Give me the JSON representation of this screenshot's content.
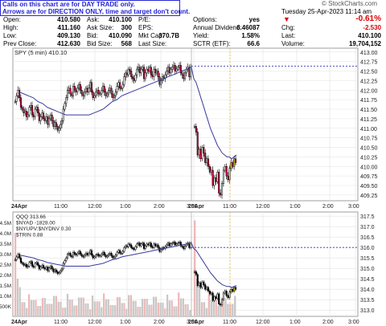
{
  "note": {
    "line1": "Calls on this chart are for DAY TRADE only.",
    "line2": "Arrows are for DIRECTION ONLY, time and target don't count."
  },
  "brand": "© StockCharts.com",
  "date": "Tuesday  25-Apr-2023  11:14 am",
  "quote": {
    "col1": [
      {
        "label": "Open:",
        "value": "410.580"
      },
      {
        "label": "High:",
        "value": "411.160"
      },
      {
        "label": "Low:",
        "value": "409.130"
      },
      {
        "label": "Prev Close:",
        "value": "412.630"
      }
    ],
    "col2": [
      {
        "label": "Ask:",
        "value": "410.100"
      },
      {
        "label": "Ask Size:",
        "value": "300"
      },
      {
        "label": "Bid:",
        "value": "410.090"
      },
      {
        "label": "Bid Size:",
        "value": "568"
      }
    ],
    "col3": [
      {
        "label": "P/E:",
        "value": ""
      },
      {
        "label": "EPS:",
        "value": ""
      },
      {
        "label": "Mkt Cap:",
        "value": "370.7B"
      },
      {
        "label": "Last Size:",
        "value": ""
      }
    ],
    "col4": [
      {
        "label": "Options:",
        "value": "yes"
      },
      {
        "label": "Annual Dividend:",
        "value": "6.46087"
      },
      {
        "label": "Yield:",
        "value": "1.58%"
      },
      {
        "label": "SCTR (ETF):",
        "value": "66.6"
      }
    ],
    "change_pct": "-0.61%",
    "col5": [
      {
        "label": "Chg:",
        "value": "-2.530"
      },
      {
        "label": "Last:",
        "value": "410.100"
      },
      {
        "label": "Volume:",
        "value": "19,704,152"
      }
    ]
  },
  "colors": {
    "up": "#ffffff",
    "down": "#e0003c",
    "ma": "#3a3aa0",
    "today": "#f5e200",
    "marker": "#f0a500",
    "dashed": "#3030b0",
    "volume": "#c8c8c8"
  },
  "chart_data": [
    {
      "type": "candlestick",
      "legend": "SPY (5 min) 410.10",
      "ylim": [
        409.1,
        413.1
      ],
      "yticks": [
        "413.00",
        "412.75",
        "412.50",
        "412.25",
        "412.00",
        "411.75",
        "411.50",
        "411.25",
        "411.00",
        "410.75",
        "410.50",
        "410.25",
        "410.00",
        "409.75",
        "409.50",
        "409.25"
      ],
      "prev_close": 412.63,
      "x_labels": [
        "24Apr",
        "11:00",
        "12:00",
        "1:00",
        "2:00",
        "3:00",
        "25Apr",
        "11:00",
        "12:00",
        "1:00",
        "2:00",
        "3:00"
      ],
      "session1_close": [
        411.7,
        411.85,
        412.0,
        411.8,
        411.55,
        411.5,
        411.4,
        411.45,
        411.3,
        411.35,
        411.55,
        411.6,
        411.35,
        411.3,
        411.5,
        411.55,
        411.4,
        411.2,
        411.3,
        411.4,
        411.25,
        411.2,
        411.3,
        411.1,
        411.25,
        411.35,
        411.2,
        411.05,
        411.15,
        411.05,
        410.95,
        411.0,
        411.1,
        411.2,
        411.5,
        411.65,
        411.8,
        412.0,
        412.05,
        411.9,
        411.85,
        412.1,
        412.0,
        411.95,
        412.05,
        412.15,
        412.0,
        411.9,
        411.85,
        411.95,
        412.05,
        411.95,
        412.05,
        412.2,
        411.95,
        411.8,
        411.85,
        411.95,
        412.0,
        411.9,
        411.9,
        412.0,
        412.1,
        411.95,
        411.85,
        411.9,
        412.0,
        412.05,
        411.9,
        411.8,
        411.85,
        411.95,
        412.1,
        412.2,
        412.05,
        412.05,
        412.15,
        412.35,
        412.45,
        412.4,
        412.55,
        412.5,
        412.35,
        412.3,
        412.25,
        412.4,
        412.55,
        412.6,
        412.45,
        412.55,
        412.6,
        412.3,
        412.45,
        412.55,
        412.5,
        412.6,
        412.4,
        412.35,
        412.55,
        412.45,
        412.5,
        412.35,
        412.15,
        412.25,
        412.35,
        412.3,
        412.4,
        412.5,
        412.6,
        412.45,
        412.55,
        412.6,
        412.65,
        412.5,
        412.55,
        412.6,
        412.65,
        412.45,
        412.4,
        412.3,
        412.45,
        412.55,
        412.6,
        412.35,
        412.6
      ],
      "session2_close": [
        411.05,
        410.9,
        410.3,
        410.45,
        410.2,
        410.5,
        410.35,
        410.1,
        410.2,
        410.0,
        409.85,
        409.9,
        409.5,
        409.7,
        409.6,
        409.85,
        409.3,
        409.25,
        409.55,
        409.9,
        410.0,
        409.75,
        409.65,
        409.95,
        410.1,
        410.0,
        410.2,
        410.1
      ],
      "ma": [
        411.95,
        411.9,
        411.85,
        411.8,
        411.7,
        411.65,
        411.55,
        411.5,
        411.45,
        411.4,
        411.35,
        411.35,
        411.35,
        411.35,
        411.35,
        411.35,
        411.4,
        411.45,
        411.5,
        411.6,
        411.7,
        411.75,
        411.85,
        411.9,
        411.95,
        412.0,
        412.05,
        412.1,
        412.15,
        412.2,
        412.25,
        412.3,
        412.35,
        412.4,
        412.45,
        412.5,
        412.55,
        412.6,
        412.3,
        412.2,
        412.0,
        411.8,
        411.6,
        411.4,
        411.2,
        411.0,
        410.85,
        410.7,
        410.55,
        410.45,
        410.35,
        410.3,
        410.25,
        410.25,
        410.2,
        410.25,
        410.3
      ]
    },
    {
      "type": "bar",
      "legend": [
        "QQQ 313.66",
        "$NYAD -1828.00",
        "$NYUPV:$NYDNV 0.30",
        "$TRIN 0.88"
      ],
      "ylim": [
        312.7,
        317.7
      ],
      "yticks": [
        "317.5",
        "317.0",
        "316.5",
        "316.0",
        "315.5",
        "315.0",
        "314.5",
        "314.0",
        "313.5",
        "313.0"
      ],
      "volume_ticks": [
        "4.5M",
        "4.0M",
        "3.5M",
        "3.0M",
        "2.5M",
        "2.0M",
        "1.5M",
        "1.0M",
        "500K"
      ],
      "volume_max": 5000000,
      "prev_close": 316.0,
      "x_labels": [
        "24Apr",
        "11:00",
        "12:00",
        "1:00",
        "2:00",
        "3:00",
        "25Apr",
        "11:00",
        "12:00",
        "1:00",
        "2:00",
        "3:00"
      ]
    }
  ]
}
